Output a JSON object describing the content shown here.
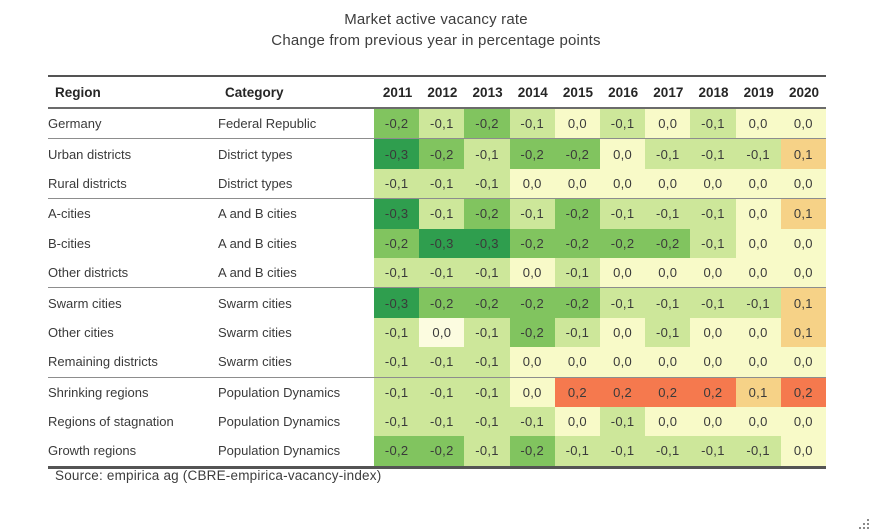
{
  "title": "Market active vacancy rate",
  "subtitle": "Change from previous year in percentage points",
  "source": "Source: empirica ag (CBRE-empirica-vacancy-index)",
  "table": {
    "region_header": "Region",
    "category_header": "Category",
    "years": [
      "2011",
      "2012",
      "2013",
      "2014",
      "2015",
      "2016",
      "2017",
      "2018",
      "2019",
      "2020"
    ],
    "rows": [
      {
        "region": "Germany",
        "category": "Federal Republic",
        "group_start": false,
        "values": [
          "-0,2",
          "-0,1",
          "-0,2",
          "-0,1",
          "0,0",
          "-0,1",
          "0,0",
          "-0,1",
          "0,0",
          "0,0"
        ]
      },
      {
        "region": "Urban districts",
        "category": "District types",
        "group_start": true,
        "values": [
          "-0,3",
          "-0,2",
          "-0,1",
          "-0,2",
          "-0,2",
          "0,0",
          "-0,1",
          "-0,1",
          "-0,1",
          "0,1"
        ]
      },
      {
        "region": "Rural districts",
        "category": "District types",
        "group_start": false,
        "values": [
          "-0,1",
          "-0,1",
          "-0,1",
          "0,0",
          "0,0",
          "0,0",
          "0,0",
          "0,0",
          "0,0",
          "0,0"
        ]
      },
      {
        "region": "A-cities",
        "category": "A and B cities",
        "group_start": true,
        "values": [
          "-0,3",
          "-0,1",
          "-0,2",
          "-0,1",
          "-0,2",
          "-0,1",
          "-0,1",
          "-0,1",
          "0,0",
          "0,1"
        ]
      },
      {
        "region": "B-cities",
        "category": "A and B cities",
        "group_start": false,
        "values": [
          "-0,2",
          "-0,3",
          "-0,3",
          "-0,2",
          "-0,2",
          "-0,2",
          "-0,2",
          "-0,1",
          "0,0",
          "0,0"
        ]
      },
      {
        "region": "Other districts",
        "category": "A and B cities",
        "group_start": false,
        "values": [
          "-0,1",
          "-0,1",
          "-0,1",
          "0,0",
          "-0,1",
          "0,0",
          "0,0",
          "0,0",
          "0,0",
          "0,0"
        ]
      },
      {
        "region": "Swarm cities",
        "category": "Swarm cities",
        "group_start": true,
        "values": [
          "-0,3",
          "-0,2",
          "-0,2",
          "-0,2",
          "-0,2",
          "-0,1",
          "-0,1",
          "-0,1",
          "-0,1",
          "0,1"
        ]
      },
      {
        "region": "Other cities",
        "category": "Swarm cities",
        "group_start": false,
        "values": [
          "-0,1",
          "0,0",
          "-0,1",
          "-0,2",
          "-0,1",
          "0,0",
          "-0,1",
          "0,0",
          "0,0",
          "0,1"
        ]
      },
      {
        "region": "Remaining districts",
        "category": "Swarm cities",
        "group_start": false,
        "values": [
          "-0,1",
          "-0,1",
          "-0,1",
          "0,0",
          "0,0",
          "0,0",
          "0,0",
          "0,0",
          "0,0",
          "0,0"
        ]
      },
      {
        "region": "Shrinking regions",
        "category": "Population Dynamics",
        "group_start": true,
        "values": [
          "-0,1",
          "-0,1",
          "-0,1",
          "0,0",
          "0,2",
          "0,2",
          "0,2",
          "0,2",
          "0,1",
          "0,2"
        ]
      },
      {
        "region": "Regions of stagnation",
        "category": "Population Dynamics",
        "group_start": false,
        "values": [
          "-0,1",
          "-0,1",
          "-0,1",
          "-0,1",
          "0,0",
          "-0,1",
          "0,0",
          "0,0",
          "0,0",
          "0,0"
        ]
      },
      {
        "region": "Growth regions",
        "category": "Population Dynamics",
        "group_start": false,
        "values": [
          "-0,2",
          "-0,2",
          "-0,1",
          "-0,2",
          "-0,1",
          "-0,1",
          "-0,1",
          "-0,1",
          "-0,1",
          "0,0"
        ]
      }
    ]
  },
  "colors": {
    "palette": {
      "-0,3": "#2f9e4e",
      "-0,2": "#81c45f",
      "-0,1": "#cde79a",
      "0,0": "#f8fac8",
      "0,1": "#f6d287",
      "0,2": "#f5794e"
    },
    "cell_overrides": [
      {
        "row": 7,
        "col": 1,
        "color": "#fcfce0"
      }
    ],
    "text": "#3a3a3a"
  },
  "chart_data": {
    "type": "heatmap",
    "title": "Market active vacancy rate",
    "subtitle": "Change from previous year in percentage points",
    "x": [
      2011,
      2012,
      2013,
      2014,
      2015,
      2016,
      2017,
      2018,
      2019,
      2020
    ],
    "value_unit": "percentage points (change from previous year)",
    "decimal_separator": ",",
    "legend_position": "none",
    "series": [
      {
        "name": "Germany",
        "category": "Federal Republic",
        "values": [
          -0.2,
          -0.1,
          -0.2,
          -0.1,
          0.0,
          -0.1,
          0.0,
          -0.1,
          0.0,
          0.0
        ]
      },
      {
        "name": "Urban districts",
        "category": "District types",
        "values": [
          -0.3,
          -0.2,
          -0.1,
          -0.2,
          -0.2,
          0.0,
          -0.1,
          -0.1,
          -0.1,
          0.1
        ]
      },
      {
        "name": "Rural districts",
        "category": "District types",
        "values": [
          -0.1,
          -0.1,
          -0.1,
          0.0,
          0.0,
          0.0,
          0.0,
          0.0,
          0.0,
          0.0
        ]
      },
      {
        "name": "A-cities",
        "category": "A and B cities",
        "values": [
          -0.3,
          -0.1,
          -0.2,
          -0.1,
          -0.2,
          -0.1,
          -0.1,
          -0.1,
          0.0,
          0.1
        ]
      },
      {
        "name": "B-cities",
        "category": "A and B cities",
        "values": [
          -0.2,
          -0.3,
          -0.3,
          -0.2,
          -0.2,
          -0.2,
          -0.2,
          -0.1,
          0.0,
          0.0
        ]
      },
      {
        "name": "Other districts",
        "category": "A and B cities",
        "values": [
          -0.1,
          -0.1,
          -0.1,
          0.0,
          -0.1,
          0.0,
          0.0,
          0.0,
          0.0,
          0.0
        ]
      },
      {
        "name": "Swarm cities",
        "category": "Swarm cities",
        "values": [
          -0.3,
          -0.2,
          -0.2,
          -0.2,
          -0.2,
          -0.1,
          -0.1,
          -0.1,
          -0.1,
          0.1
        ]
      },
      {
        "name": "Other cities",
        "category": "Swarm cities",
        "values": [
          -0.1,
          0.0,
          -0.1,
          -0.2,
          -0.1,
          0.0,
          -0.1,
          0.0,
          0.0,
          0.1
        ]
      },
      {
        "name": "Remaining districts",
        "category": "Swarm cities",
        "values": [
          -0.1,
          -0.1,
          -0.1,
          0.0,
          0.0,
          0.0,
          0.0,
          0.0,
          0.0,
          0.0
        ]
      },
      {
        "name": "Shrinking regions",
        "category": "Population Dynamics",
        "values": [
          -0.1,
          -0.1,
          -0.1,
          0.0,
          0.2,
          0.2,
          0.2,
          0.2,
          0.1,
          0.2
        ]
      },
      {
        "name": "Regions of stagnation",
        "category": "Population Dynamics",
        "values": [
          -0.1,
          -0.1,
          -0.1,
          -0.1,
          0.0,
          -0.1,
          0.0,
          0.0,
          0.0,
          0.0
        ]
      },
      {
        "name": "Growth regions",
        "category": "Population Dynamics",
        "values": [
          -0.2,
          -0.2,
          -0.1,
          -0.2,
          -0.1,
          -0.1,
          -0.1,
          -0.1,
          -0.1,
          0.0
        ]
      }
    ],
    "color_scale": {
      "-0.3": "#2f9e4e",
      "-0.2": "#81c45f",
      "-0.1": "#cde79a",
      "0.0": "#f8fac8",
      "0.1": "#f6d287",
      "0.2": "#f5794e"
    }
  }
}
